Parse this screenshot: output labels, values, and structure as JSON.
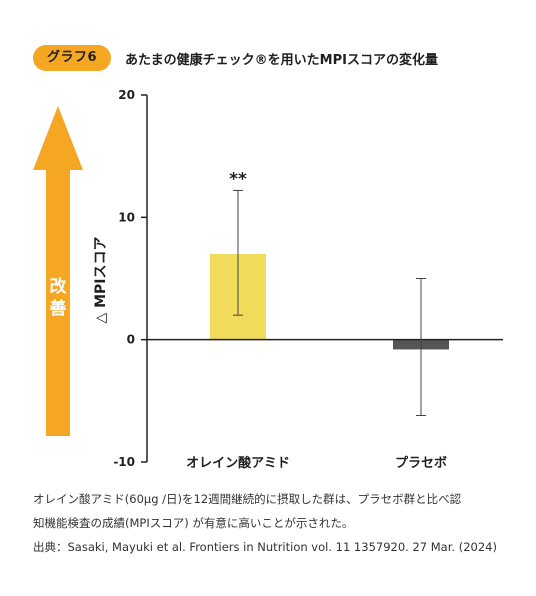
{
  "header": {
    "badge": "グラフ6",
    "title": "あたまの健康チェック®を用いたMPIスコアの変化量"
  },
  "arrow": {
    "label_chars": [
      "改",
      "善"
    ],
    "color": "#f5a623"
  },
  "chart_data": {
    "type": "bar",
    "categories": [
      "オレイン酸アミド",
      "プラセボ"
    ],
    "values": [
      7.0,
      -0.8
    ],
    "error_low": [
      2.0,
      -6.2
    ],
    "error_high": [
      12.2,
      5.0
    ],
    "colors": [
      "#f0dc5a",
      "#555555"
    ],
    "significance": [
      "**",
      ""
    ],
    "ylabel": "△ MPIスコア",
    "ylim": [
      -10,
      20
    ],
    "yticks": [
      -10,
      0,
      10,
      20
    ],
    "ytick_labels": [
      "-10",
      "0",
      "10",
      "20"
    ],
    "grid": false,
    "baseline": 0
  },
  "notes": {
    "line1": "オレイン酸アミド(60μg /日)を12週間継続的に摂取した群は、プラセボ群と比べ認",
    "line2": "知機能検査の成績(MPIスコア) が有意に高いことが示された。",
    "line3": "出典：Sasaki, Mayuki et al. Frontiers in Nutrition vol. 11 1357920. 27 Mar. (2024)"
  }
}
